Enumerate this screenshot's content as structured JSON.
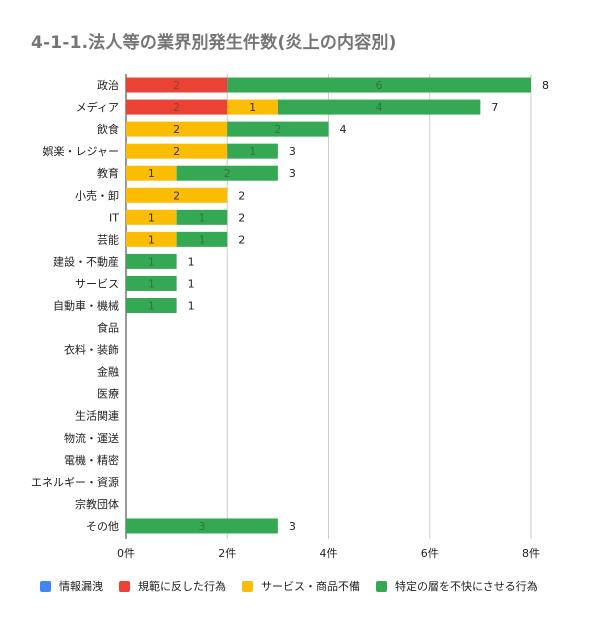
{
  "chart_data": {
    "type": "bar",
    "orientation": "horizontal",
    "stacked": true,
    "title": "4-1-1.法人等の業界別発生件数(炎上の内容別)",
    "xlabel": "",
    "ylabel": "",
    "xlim": [
      0,
      8
    ],
    "x_ticks": [
      "0件",
      "2件",
      "4件",
      "6件",
      "8件"
    ],
    "grid": true,
    "legend_position": "bottom",
    "categories": [
      "政治",
      "メディア",
      "飲食",
      "娯楽・レジャー",
      "教育",
      "小売・卸",
      "IT",
      "芸能",
      "建設・不動産",
      "サービス",
      "自動車・機械",
      "食品",
      "衣料・装飾",
      "金融",
      "医療",
      "生活関連",
      "物流・運送",
      "電機・精密",
      "エネルギー・資源",
      "宗教団体",
      "その他"
    ],
    "series": [
      {
        "name": "情報漏洩",
        "color": "#4285f4",
        "values": [
          0,
          0,
          0,
          0,
          0,
          0,
          0,
          0,
          0,
          0,
          0,
          0,
          0,
          0,
          0,
          0,
          0,
          0,
          0,
          0,
          0
        ]
      },
      {
        "name": "規範に反した行為",
        "color": "#ea4335",
        "values": [
          2,
          2,
          0,
          0,
          0,
          0,
          0,
          0,
          0,
          0,
          0,
          0,
          0,
          0,
          0,
          0,
          0,
          0,
          0,
          0,
          0
        ]
      },
      {
        "name": "サービス・商品不備",
        "color": "#fbbc04",
        "values": [
          0,
          1,
          2,
          2,
          1,
          2,
          1,
          1,
          0,
          0,
          0,
          0,
          0,
          0,
          0,
          0,
          0,
          0,
          0,
          0,
          0
        ]
      },
      {
        "name": "特定の層を不快にさせる行為",
        "color": "#34a853",
        "values": [
          6,
          4,
          2,
          1,
          2,
          0,
          1,
          1,
          1,
          1,
          1,
          0,
          0,
          0,
          0,
          0,
          0,
          0,
          0,
          0,
          3
        ]
      }
    ],
    "totals": [
      "8",
      "7",
      "4",
      "3",
      "3",
      "2",
      "2",
      "2",
      "1",
      "1",
      "1",
      "",
      "",
      "",
      "",
      "",
      "",
      "",
      "",
      "",
      "3"
    ]
  }
}
